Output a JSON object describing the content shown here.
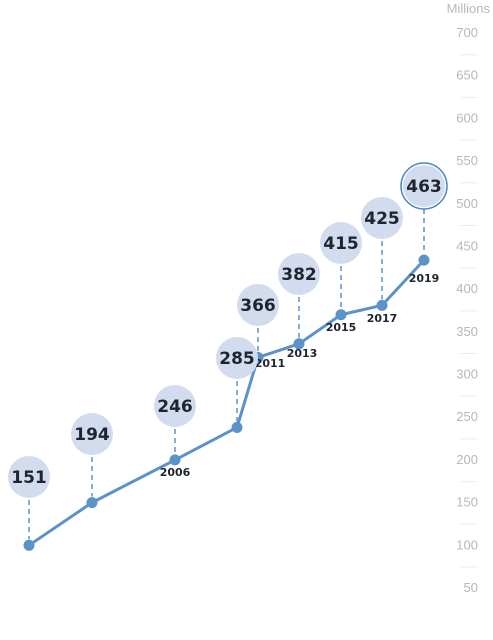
{
  "chart_data": {
    "type": "line",
    "unit_label": "Millions",
    "y_ticks": [
      "50",
      "100",
      "150",
      "200",
      "250",
      "300",
      "350",
      "400",
      "450",
      "500",
      "550",
      "600",
      "650",
      "700"
    ],
    "ylim": [
      50,
      700
    ],
    "grid": false,
    "points": [
      {
        "value": 151,
        "year": ""
      },
      {
        "value": 194,
        "year": ""
      },
      {
        "value": 246,
        "year": "2006"
      },
      {
        "value": 285,
        "year": ""
      },
      {
        "value": 366,
        "year": "2011"
      },
      {
        "value": 382,
        "year": "2013"
      },
      {
        "value": 415,
        "year": "2015"
      },
      {
        "value": 425,
        "year": "2017"
      },
      {
        "value": 463,
        "year": "2019"
      }
    ],
    "line_points": [
      {
        "y": 100
      },
      {
        "y": 150
      },
      {
        "y": 200
      },
      {
        "y": 238
      },
      {
        "y": 320
      },
      {
        "y": 336
      },
      {
        "y": 370
      },
      {
        "y": 381
      },
      {
        "y": 434
      }
    ],
    "colors": {
      "line": "#5b93c9",
      "bubble_fill": "#d3dcef",
      "bubble_highlight_stroke": "#4f86c6",
      "tick_text": "#b4b8bf",
      "value_text": "#1e2430"
    }
  }
}
